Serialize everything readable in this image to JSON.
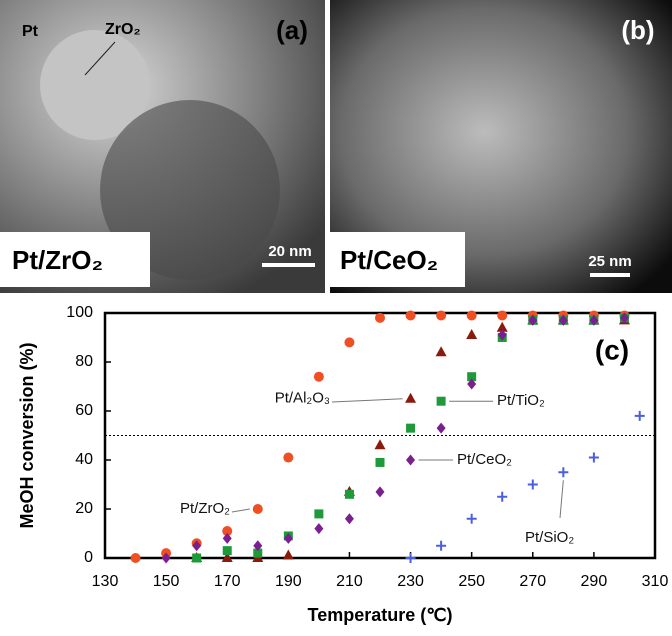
{
  "panels": [
    {
      "label": "(a)",
      "caption": "Pt/ZrO₂",
      "scale_bar": "20 nm",
      "annotations": [
        "Pt",
        "ZrO₂"
      ]
    },
    {
      "label": "(b)",
      "caption": "Pt/CeO₂",
      "scale_bar": "25 nm"
    }
  ],
  "chart_data": {
    "type": "scatter",
    "panel_label": "(c)",
    "x_label": "Temperature (℃)",
    "y_label": "MeOH conversion (%)",
    "xlim": [
      130,
      310
    ],
    "xticks": [
      130,
      150,
      170,
      190,
      210,
      230,
      250,
      270,
      290,
      310
    ],
    "ylim": [
      0,
      100
    ],
    "yticks": [
      0,
      20,
      40,
      60,
      80,
      100
    ],
    "reference_line": 50,
    "series": [
      {
        "name": "Pt/ZrO₂",
        "color": "#f04e23",
        "marker": "circle",
        "x": [
          140,
          150,
          160,
          170,
          180,
          190,
          200,
          210,
          220,
          230,
          240,
          250,
          260,
          270,
          280,
          290,
          300
        ],
        "values": [
          0,
          2,
          6,
          11,
          20,
          41,
          74,
          88,
          98,
          99,
          99,
          99,
          99,
          99,
          99,
          99,
          99
        ]
      },
      {
        "name": "Pt/Al₂O₃",
        "color": "#8b1a0e",
        "marker": "triangle",
        "x": [
          160,
          170,
          180,
          190,
          210,
          220,
          230,
          240,
          250,
          260,
          270,
          280,
          290,
          300
        ],
        "values": [
          0,
          0,
          0,
          1,
          27,
          46,
          65,
          84,
          91,
          94,
          97,
          97,
          97,
          97
        ]
      },
      {
        "name": "Pt/TiO₂",
        "color": "#1e9a3a",
        "marker": "square",
        "x": [
          160,
          170,
          180,
          190,
          200,
          210,
          220,
          230,
          240,
          250,
          260,
          270,
          280,
          290,
          300
        ],
        "values": [
          0,
          3,
          2,
          9,
          18,
          26,
          39,
          53,
          64,
          74,
          90,
          97,
          97,
          97,
          98
        ]
      },
      {
        "name": "Pt/CeO₂",
        "color": "#7a1f8f",
        "marker": "diamond",
        "x": [
          150,
          160,
          170,
          180,
          190,
          200,
          210,
          220,
          230,
          240,
          250,
          260,
          270,
          280,
          290,
          300
        ],
        "values": [
          0,
          5,
          8,
          5,
          8,
          12,
          16,
          27,
          40,
          53,
          71,
          91,
          97,
          97,
          97,
          98
        ]
      },
      {
        "name": "Pt/SiO₂",
        "color": "#4a5ee0",
        "marker": "plus",
        "x": [
          230,
          240,
          250,
          260,
          270,
          280,
          290,
          305
        ],
        "values": [
          0,
          5,
          16,
          25,
          30,
          35,
          41,
          58
        ]
      }
    ]
  }
}
